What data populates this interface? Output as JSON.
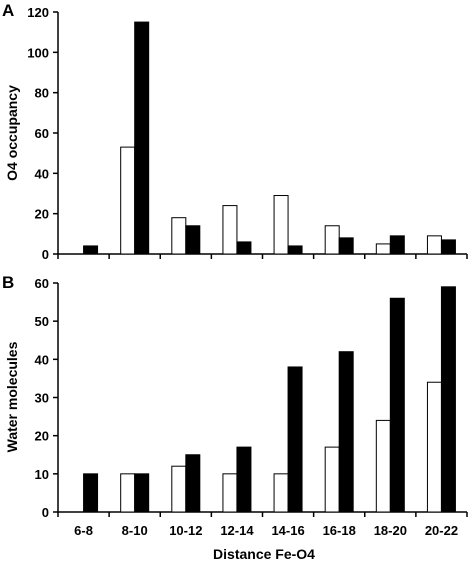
{
  "figure": {
    "panel_a_letter": "A",
    "panel_b_letter": "B",
    "shared_xlabel": "Distance Fe-O4"
  },
  "colors": {
    "series_open": "#ffffff",
    "series_filled": "#000000",
    "outline": "#000000"
  },
  "chart_data": [
    {
      "type": "bar",
      "panel": "A",
      "ylabel": "O4 occupancy",
      "xlabel": "",
      "ylim": [
        0,
        120
      ],
      "yticks": [
        0,
        20,
        40,
        60,
        80,
        100,
        120
      ],
      "grid": false,
      "categories": [
        "6-8",
        "8-10",
        "10-12",
        "12-14",
        "14-16",
        "16-18",
        "18-20",
        "20-22"
      ],
      "show_category_labels": false,
      "series": [
        {
          "style": "open",
          "values": [
            0,
            53,
            18,
            24,
            29,
            14,
            5,
            9
          ]
        },
        {
          "style": "filled",
          "values": [
            4,
            115,
            14,
            6,
            4,
            8,
            9,
            7
          ]
        }
      ]
    },
    {
      "type": "bar",
      "panel": "B",
      "ylabel": "Water molecules",
      "xlabel": "Distance Fe-O4",
      "ylim": [
        0,
        60
      ],
      "yticks": [
        0,
        10,
        20,
        30,
        40,
        50,
        60
      ],
      "grid": false,
      "categories": [
        "6-8",
        "8-10",
        "10-12",
        "12-14",
        "14-16",
        "16-18",
        "18-20",
        "20-22"
      ],
      "show_category_labels": true,
      "series": [
        {
          "style": "open",
          "values": [
            0,
            10,
            12,
            10,
            10,
            17,
            24,
            34
          ]
        },
        {
          "style": "filled",
          "values": [
            10,
            10,
            15,
            17,
            38,
            42,
            56,
            59
          ]
        }
      ]
    }
  ]
}
